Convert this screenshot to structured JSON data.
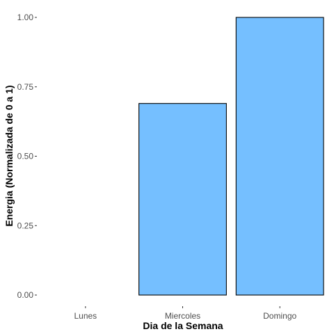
{
  "chart_data": {
    "type": "bar",
    "categories": [
      "Lunes",
      "Miercoles",
      "Domingo"
    ],
    "values": [
      0.0,
      0.69,
      1.0
    ],
    "xlabel": "Dia de la Semana",
    "ylabel": "Energia (Normalizada de 0 a 1)",
    "ylim": [
      0,
      1
    ],
    "yticks": [
      0.0,
      0.25,
      0.5,
      0.75,
      1.0
    ],
    "ytick_labels": [
      "0.00",
      "0.25",
      "0.50",
      "0.75",
      "1.00"
    ],
    "grid": false,
    "legend": "none",
    "bar_color": "#75BFFF",
    "bar_outline": "#000000"
  }
}
